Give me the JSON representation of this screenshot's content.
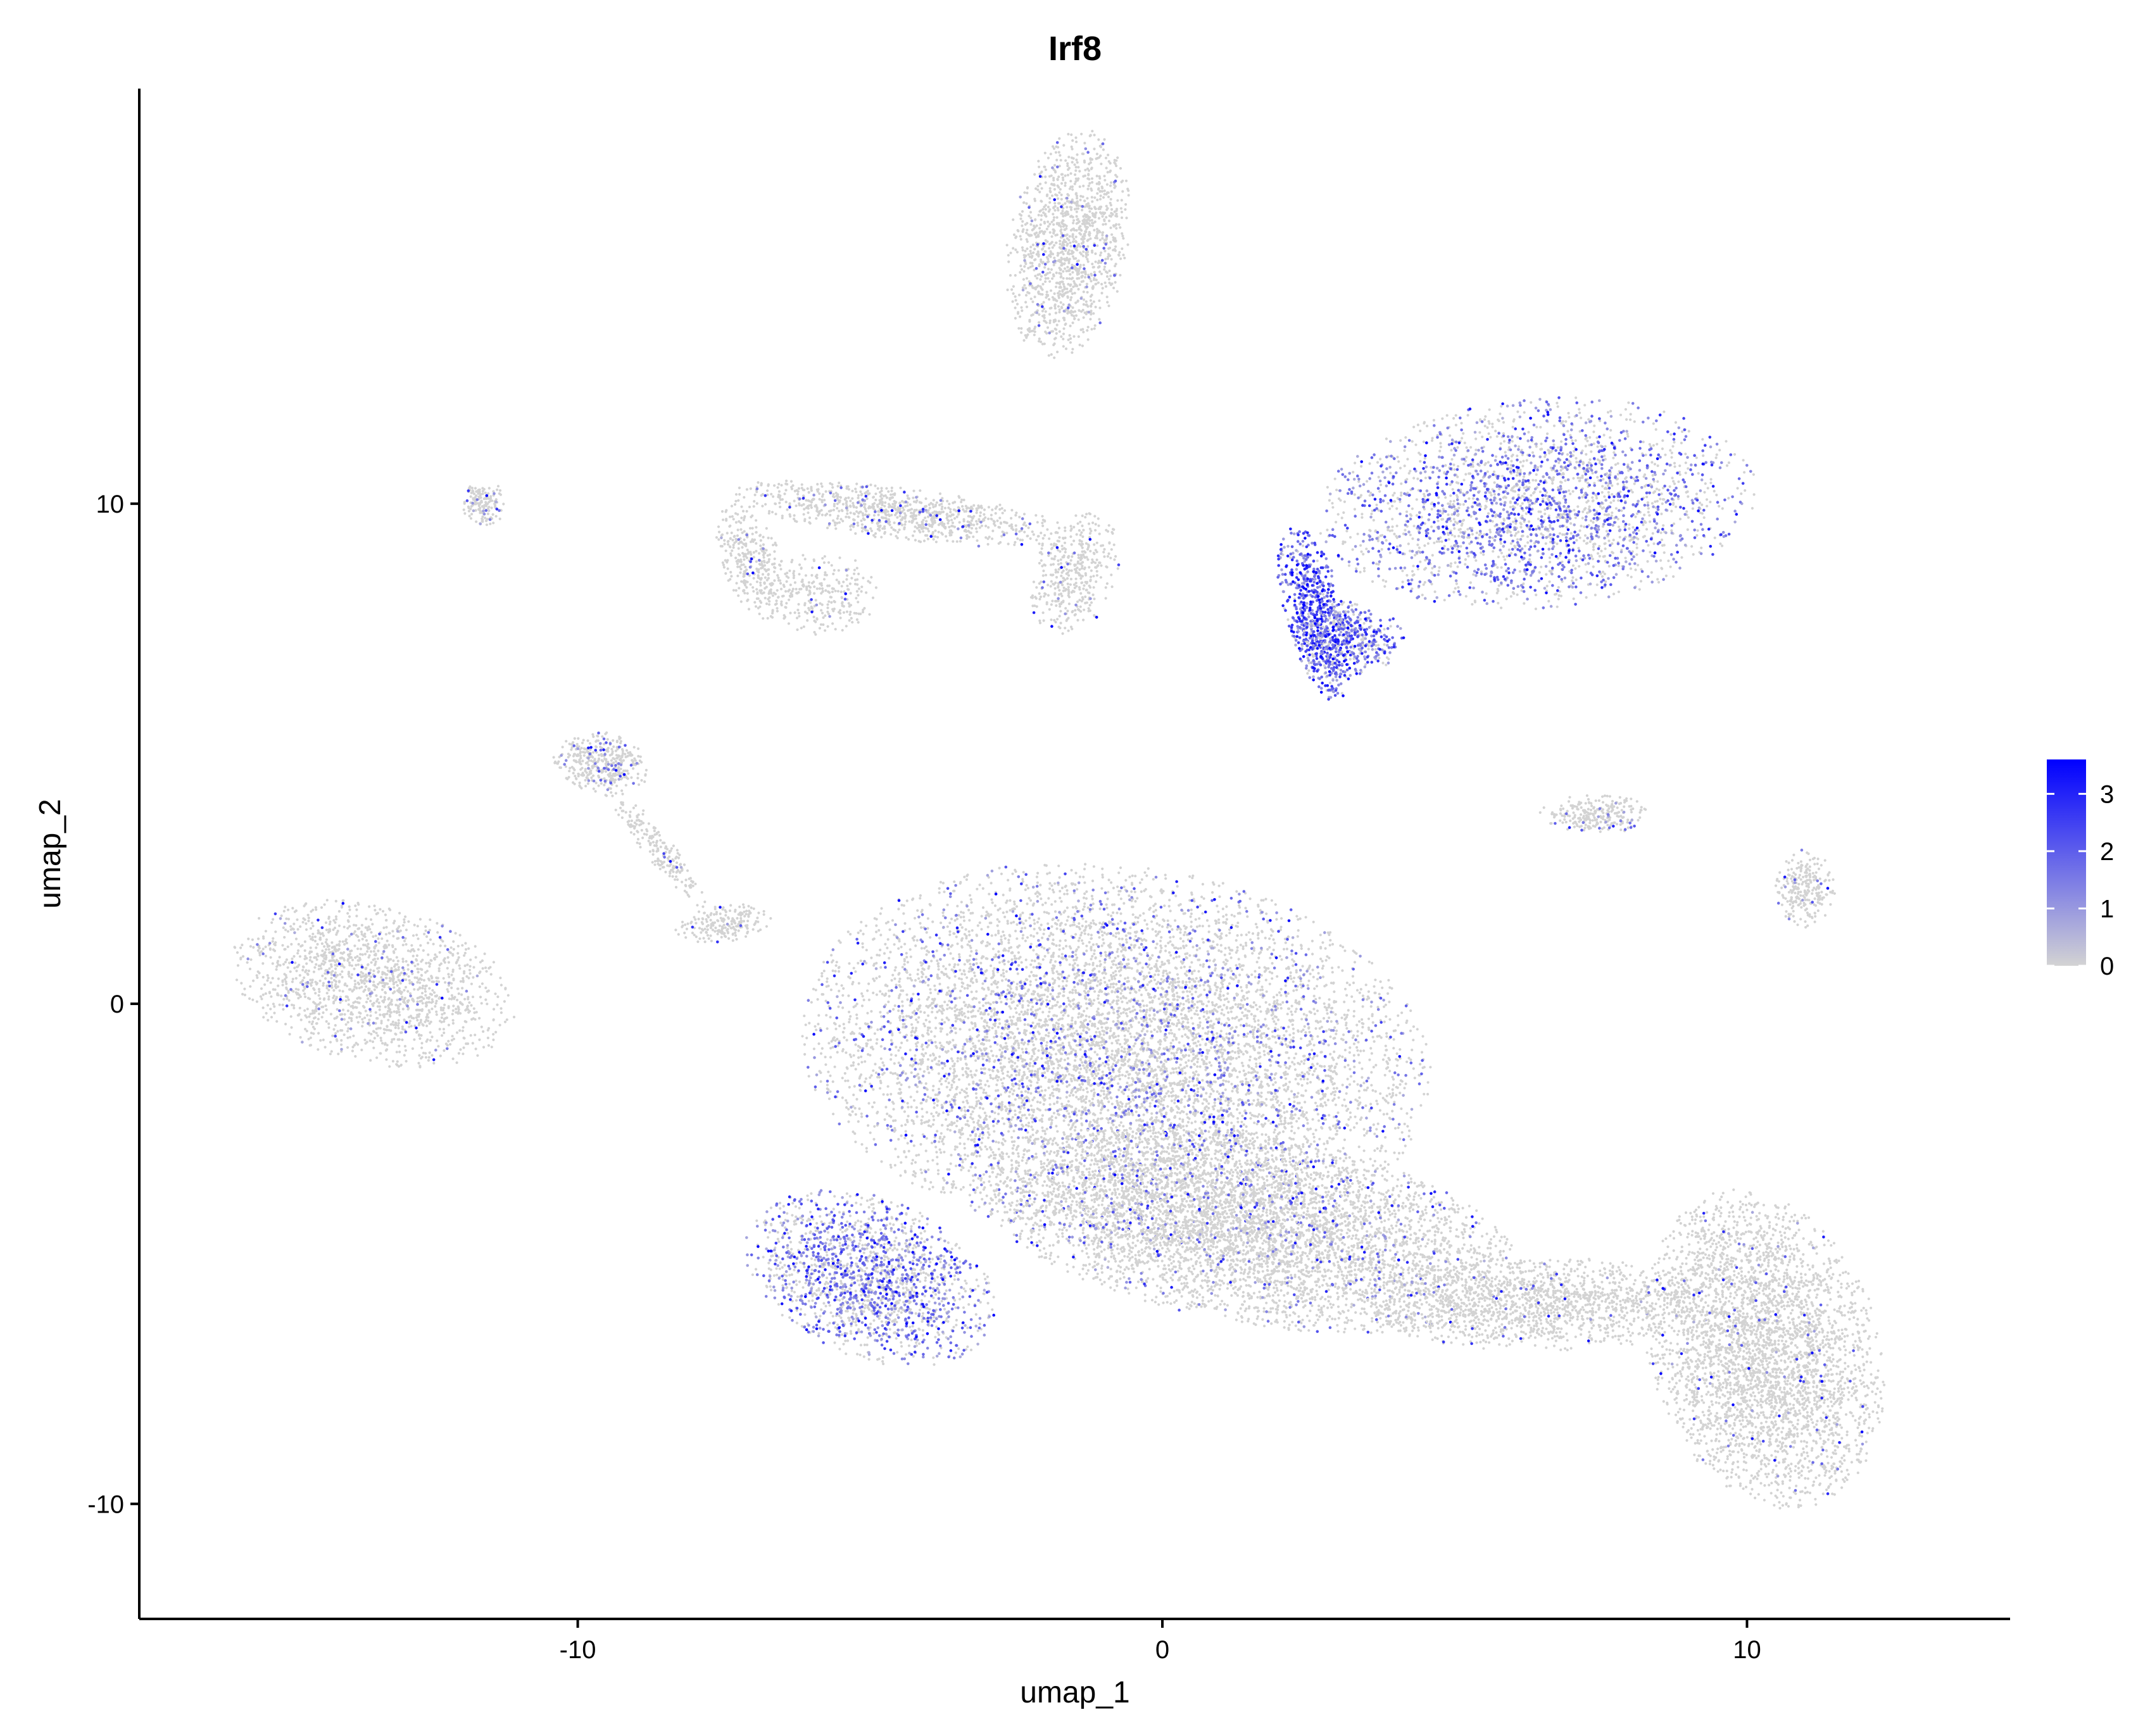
{
  "chart_data": {
    "type": "scatter",
    "title": "Irf8",
    "xlabel": "umap_1",
    "ylabel": "umap_2",
    "xlim": [
      -17.5,
      14.5
    ],
    "ylim": [
      -12.3,
      18.3
    ],
    "x_ticks": [
      -10,
      0,
      10
    ],
    "y_ticks": [
      -10,
      0,
      10
    ],
    "x_tick_labels": [
      "-10",
      "0",
      "10"
    ],
    "y_tick_labels": [
      "-10",
      "0",
      "10"
    ],
    "grid": false,
    "legend": {
      "placement": "right",
      "type": "colorbar",
      "title": "",
      "ticks": [
        0,
        1,
        2,
        3
      ],
      "tick_labels": [
        "0",
        "1",
        "2",
        "3"
      ],
      "range": [
        0,
        3.6
      ],
      "low_color": "#d3d3d3",
      "high_color": "#0000ff"
    },
    "clusters": [
      {
        "id": "top-island",
        "cx": -1.6,
        "cy": 15.2,
        "rx": 1.0,
        "ry": 2.2,
        "rot": -8,
        "n": 1300,
        "expr": 0.03,
        "hot": 0.01
      },
      {
        "id": "upper-right-mass",
        "cx": 6.4,
        "cy": 10.0,
        "rx": 3.6,
        "ry": 2.0,
        "rot": 6,
        "n": 2600,
        "expr": 0.45,
        "hot": 0.08
      },
      {
        "id": "right-hot-stripe",
        "cx": 2.6,
        "cy": 7.8,
        "rx": 0.5,
        "ry": 1.7,
        "rot": 12,
        "n": 700,
        "expr": 0.85,
        "hot": 0.35
      },
      {
        "id": "right-hot-base",
        "cx": 3.2,
        "cy": 7.3,
        "rx": 0.9,
        "ry": 0.7,
        "rot": 0,
        "n": 400,
        "expr": 0.6,
        "hot": 0.2
      },
      {
        "id": "arc-left",
        "cx": -7.0,
        "cy": 8.8,
        "rx": 0.5,
        "ry": 1.2,
        "rot": 20,
        "n": 350,
        "expr": 0.02,
        "hot": 0.01
      },
      {
        "id": "arc-top",
        "cx": -4.5,
        "cy": 9.8,
        "rx": 2.8,
        "ry": 0.5,
        "rot": -8,
        "n": 900,
        "expr": 0.05,
        "hot": 0.02
      },
      {
        "id": "arc-right",
        "cx": -1.5,
        "cy": 8.6,
        "rx": 0.7,
        "ry": 1.2,
        "rot": -15,
        "n": 400,
        "expr": 0.03,
        "hot": 0.01
      },
      {
        "id": "arc-inner",
        "cx": -5.8,
        "cy": 8.2,
        "rx": 0.9,
        "ry": 0.8,
        "rot": 0,
        "n": 250,
        "expr": 0.02,
        "hot": 0.01
      },
      {
        "id": "small-left-island",
        "cx": -11.6,
        "cy": 10.0,
        "rx": 0.35,
        "ry": 0.45,
        "rot": 0,
        "n": 150,
        "expr": 0.1,
        "hot": 0.02
      },
      {
        "id": "mid-left-blob",
        "cx": -9.6,
        "cy": 4.8,
        "rx": 0.8,
        "ry": 0.6,
        "rot": -20,
        "n": 400,
        "expr": 0.1,
        "hot": 0.03
      },
      {
        "id": "mid-left-tail",
        "cx": -8.6,
        "cy": 3.1,
        "rx": 1.4,
        "ry": 0.25,
        "rot": -55,
        "n": 200,
        "expr": 0.03,
        "hot": 0.01
      },
      {
        "id": "mid-left-end",
        "cx": -7.5,
        "cy": 1.6,
        "rx": 0.8,
        "ry": 0.35,
        "rot": 10,
        "n": 200,
        "expr": 0.02,
        "hot": 0.01
      },
      {
        "id": "far-left-island",
        "cx": -13.5,
        "cy": 0.4,
        "rx": 2.4,
        "ry": 1.5,
        "rot": -18,
        "n": 1600,
        "expr": 0.03,
        "hot": 0.01
      },
      {
        "id": "main-body-upper",
        "cx": -0.8,
        "cy": -1.0,
        "rx": 5.2,
        "ry": 3.6,
        "rot": -10,
        "n": 8500,
        "expr": 0.12,
        "hot": 0.03
      },
      {
        "id": "main-body-left",
        "cx": -5.0,
        "cy": -5.5,
        "rx": 2.2,
        "ry": 1.5,
        "rot": -30,
        "n": 1800,
        "expr": 0.45,
        "hot": 0.08
      },
      {
        "id": "main-body-center",
        "cx": 1.5,
        "cy": -4.5,
        "rx": 4.5,
        "ry": 1.8,
        "rot": -12,
        "n": 5000,
        "expr": 0.06,
        "hot": 0.02
      },
      {
        "id": "main-bridge",
        "cx": 6.5,
        "cy": -6.0,
        "rx": 3.0,
        "ry": 0.9,
        "rot": 0,
        "n": 1500,
        "expr": 0.02,
        "hot": 0.01
      },
      {
        "id": "lower-right-mass",
        "cx": 10.3,
        "cy": -6.9,
        "rx": 1.9,
        "ry": 3.1,
        "rot": 12,
        "n": 3500,
        "expr": 0.02,
        "hot": 0.01
      },
      {
        "id": "right-small-cluster",
        "cx": 7.4,
        "cy": 3.8,
        "rx": 0.9,
        "ry": 0.4,
        "rot": 0,
        "n": 250,
        "expr": 0.05,
        "hot": 0.01
      },
      {
        "id": "far-right-island",
        "cx": 11.0,
        "cy": 2.3,
        "rx": 0.5,
        "ry": 0.75,
        "rot": 0,
        "n": 250,
        "expr": 0.05,
        "hot": 0.01
      }
    ]
  }
}
